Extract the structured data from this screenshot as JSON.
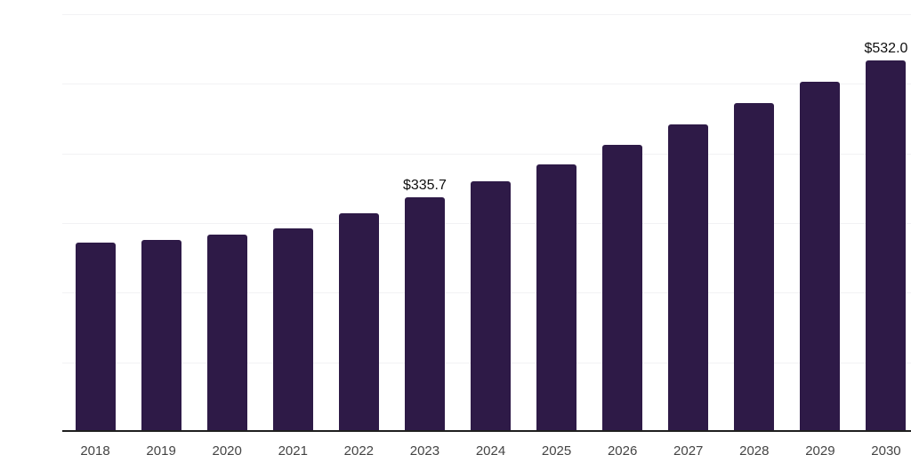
{
  "chart_data": {
    "type": "bar",
    "categories": [
      "2018",
      "2019",
      "2020",
      "2021",
      "2022",
      "2023",
      "2024",
      "2025",
      "2026",
      "2027",
      "2028",
      "2029",
      "2030"
    ],
    "values": [
      270.6,
      274.5,
      282.1,
      291.1,
      312.8,
      335.7,
      358.7,
      383.0,
      411.1,
      440.4,
      471.1,
      501.7,
      532.0
    ],
    "data_labels": [
      "",
      "",
      "",
      "",
      "",
      "$335.7",
      "",
      "",
      "",
      "",
      "",
      "",
      "$532.0"
    ],
    "title": "",
    "xlabel": "",
    "ylabel": "",
    "ylim": [
      0,
      600
    ],
    "gridline_step": 100,
    "grid": true,
    "legend": false,
    "bar_color": "#2e1a47",
    "axis_line_color": "#1f1f1f",
    "gridline_color": "#f2f2f4",
    "tick_label_color": "#454545",
    "value_label_color": "#0f0f0f"
  }
}
